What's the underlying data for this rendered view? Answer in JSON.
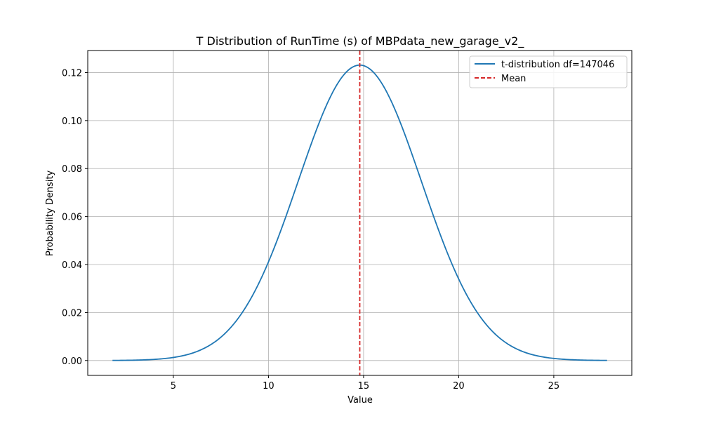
{
  "chart_data": {
    "type": "line",
    "title": "T Distribution of RunTime (s) of MBPdata_new_garage_v2_",
    "xlabel": "Value",
    "ylabel": "Probability Density",
    "xlim": [
      0.5,
      29.1
    ],
    "ylim": [
      -0.0062,
      0.1292
    ],
    "xticks": [
      5,
      10,
      15,
      20,
      25
    ],
    "yticks": [
      0.0,
      0.02,
      0.04,
      0.06,
      0.08,
      0.1,
      0.12
    ],
    "yticks_labels": [
      "0.00",
      "0.02",
      "0.04",
      "0.06",
      "0.08",
      "0.10",
      "0.12"
    ],
    "grid": true,
    "legend_position": "top-right",
    "series": [
      {
        "name": "t-distribution df=147046",
        "kind": "curve",
        "color": "#1f77b4",
        "x_range": [
          1.8,
          27.8
        ],
        "mean": 14.8,
        "std": 3.24
      },
      {
        "name": "Mean",
        "kind": "vline",
        "color": "#d62728",
        "x": 14.8
      }
    ]
  }
}
